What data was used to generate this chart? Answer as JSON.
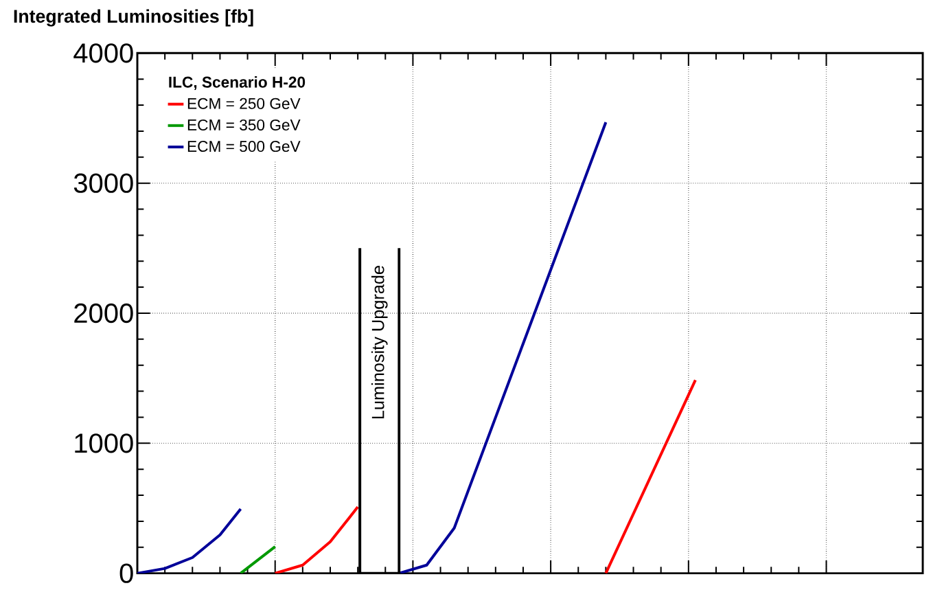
{
  "chart_data": {
    "type": "line",
    "title": "Integrated Luminosities  [fb]",
    "legend_title": "ILC, Scenario H-20",
    "legend": "top left",
    "grid": true,
    "tick_labels": "y",
    "categories": [
      null,
      null,
      null,
      null,
      null,
      null,
      null,
      null,
      null,
      null,
      null,
      null,
      null,
      null,
      null,
      null,
      null,
      null,
      null,
      null,
      null,
      null,
      null,
      null,
      null,
      null,
      null,
      null,
      null,
      null,
      null,
      null,
      null,
      null,
      null,
      null,
      null,
      null,
      null,
      null,
      null,
      null,
      null,
      null,
      null,
      null,
      null,
      null,
      null,
      null,
      null,
      null,
      null,
      null,
      null,
      null,
      null,
      null,
      null,
      null,
      null,
      null,
      null,
      null,
      null,
      null,
      null,
      null,
      null,
      null,
      null,
      null,
      null,
      null,
      null,
      null,
      null,
      null,
      null,
      null,
      null,
      null,
      null,
      null,
      null,
      null,
      null,
      null,
      null,
      null,
      null,
      null,
      null,
      null,
      null,
      null,
      null,
      null,
      null,
      null,
      null,
      null,
      null,
      null,
      null,
      null,
      null,
      null,
      null,
      null,
      null,
      null,
      null,
      null,
      null
    ],
    "ylim": [
      0,
      4000
    ],
    "yticks": [
      0,
      1000,
      2000,
      3000,
      4000
    ],
    "series": [
      {
        "name": "ECM = 250 GeV",
        "color": "#ff0000",
        "values": [
          null,
          null,
          null,
          null,
          null,
          null,
          null,
          null,
          null,
          null,
          null,
          null,
          null,
          null,
          null,
          null,
          null,
          null,
          null,
          null,
          0,
          null,
          null,
          null,
          63,
          null,
          null,
          null,
          242,
          null,
          null,
          null,
          510,
          null,
          null,
          null,
          null,
          null,
          null,
          null,
          null,
          null,
          null,
          null,
          null,
          null,
          null,
          null,
          null,
          null,
          null,
          null,
          null,
          null,
          null,
          null,
          null,
          null,
          null,
          null,
          null,
          null,
          null,
          null,
          null,
          null,
          null,
          null,
          null,
          null,
          null,
          null,
          null,
          null,
          null,
          null,
          null,
          null,
          null,
          null,
          null,
          null,
          null,
          null,
          null,
          null,
          null,
          null,
          null,
          null,
          null,
          null,
          null,
          null,
          null,
          null,
          null,
          null,
          null,
          null,
          null,
          null,
          null,
          null,
          null,
          null,
          null,
          null,
          null,
          null,
          null,
          null,
          null,
          null,
          null
        ]
      },
      {
        "name": "ECM = 350 GeV",
        "color": "#009900",
        "values": [
          null,
          null,
          null,
          null,
          null,
          null,
          null,
          null,
          null,
          null,
          null,
          null,
          null,
          null,
          null,
          0,
          null,
          null,
          null,
          null,
          205,
          null,
          null,
          null,
          null,
          null,
          null,
          null,
          null,
          null,
          null,
          null,
          null,
          null,
          null,
          null,
          null,
          null,
          null,
          null,
          null,
          null,
          null,
          null,
          null,
          null,
          null,
          null,
          null,
          null,
          null,
          null,
          null,
          null,
          null,
          null,
          null,
          null,
          null,
          null,
          null,
          null,
          null,
          null,
          null,
          null,
          null,
          null,
          null,
          null,
          null,
          null,
          null,
          null,
          null,
          null,
          null,
          null,
          null,
          null,
          null,
          null,
          null,
          null,
          null,
          null,
          null,
          null,
          null,
          null,
          null,
          null,
          null,
          null,
          null,
          null,
          null,
          null,
          null,
          null,
          null,
          null,
          null,
          null,
          null,
          null,
          null,
          null,
          null,
          null,
          null,
          null,
          null,
          null,
          null
        ]
      },
      {
        "name": "ECM = 500 GeV",
        "color": "#000099",
        "values": [
          0,
          null,
          null,
          null,
          37,
          null,
          null,
          null,
          121,
          null,
          null,
          null,
          295,
          null,
          null,
          495,
          null,
          null,
          null,
          null,
          null,
          null,
          null,
          null,
          null,
          null,
          null,
          null,
          null,
          null,
          null,
          null,
          null,
          null,
          null,
          null,
          null,
          null,
          null,
          null,
          null,
          null,
          null,
          null,
          null,
          null,
          null,
          null,
          null,
          null,
          null,
          null,
          null,
          null,
          null,
          null,
          null,
          null,
          null,
          null,
          null,
          null,
          null,
          null,
          null,
          null,
          null,
          null,
          null,
          null,
          null,
          null,
          null,
          null,
          null,
          null,
          null,
          null,
          null,
          null,
          null,
          null,
          null,
          null,
          null,
          null,
          null,
          null,
          null,
          null,
          null,
          null,
          null,
          null,
          null,
          null,
          null,
          null,
          null,
          null,
          null,
          null,
          null,
          null,
          null,
          null,
          null,
          null,
          null,
          null,
          null,
          null,
          null,
          null,
          null
        ]
      },
      {
        "color": "#ff0000",
        "values": [
          null,
          null,
          null,
          null,
          null,
          null,
          null,
          null,
          null,
          null,
          null,
          null,
          null,
          null,
          null,
          null,
          null,
          null,
          null,
          null,
          null,
          null,
          null,
          null,
          null,
          null,
          null,
          null,
          null,
          null,
          null,
          null,
          null,
          null,
          null,
          null,
          null,
          null,
          null,
          null,
          null,
          null,
          null,
          null,
          null,
          null,
          null,
          null,
          null,
          null,
          null,
          null,
          null,
          null,
          null,
          null,
          null,
          null,
          null,
          null,
          null,
          null,
          null,
          null,
          null,
          null,
          null,
          null,
          0,
          null,
          null,
          null,
          null,
          null,
          null,
          null,
          null,
          null,
          null,
          null,
          null,
          1486,
          null,
          null,
          null,
          null,
          null,
          null,
          null,
          null,
          null,
          null,
          null,
          null,
          null,
          null,
          null,
          null,
          null,
          null,
          null,
          null,
          null,
          null,
          null,
          null,
          null,
          null,
          null,
          null,
          null,
          null,
          null,
          null,
          null
        ]
      },
      {
        "color": "#000099",
        "values": [
          null,
          null,
          null,
          null,
          null,
          null,
          null,
          null,
          null,
          null,
          null,
          null,
          null,
          null,
          null,
          null,
          null,
          null,
          null,
          null,
          null,
          null,
          null,
          null,
          null,
          null,
          null,
          null,
          null,
          null,
          null,
          null,
          null,
          null,
          null,
          null,
          null,
          null,
          0,
          null,
          null,
          null,
          63,
          null,
          null,
          null,
          348,
          null,
          null,
          null,
          null,
          null,
          null,
          null,
          null,
          null,
          null,
          null,
          null,
          null,
          null,
          null,
          null,
          null,
          null,
          null,
          null,
          null,
          3468,
          null,
          null,
          null,
          null,
          null,
          null,
          null,
          null,
          null,
          null,
          null,
          null,
          null,
          null,
          null,
          null,
          null,
          null,
          null,
          null,
          null,
          null,
          null,
          null,
          null,
          null,
          null,
          null,
          null,
          null,
          null,
          null,
          null,
          null,
          null,
          null,
          null,
          null,
          null,
          null,
          null,
          null,
          null,
          null,
          null,
          null
        ]
      }
    ],
    "annotations": [
      "Luminosity Upgrade"
    ]
  }
}
